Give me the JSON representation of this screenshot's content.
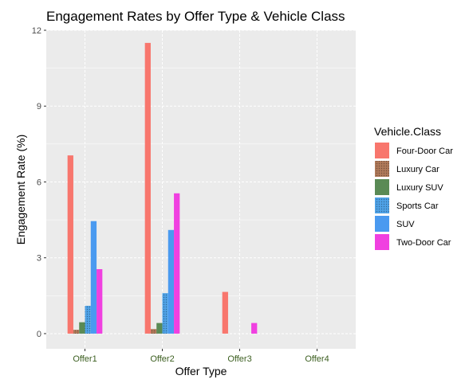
{
  "chart_data": {
    "type": "bar",
    "title": "Engagement Rates by Offer Type & Vehicle Class",
    "xlabel": "Offer Type",
    "ylabel": "Engagement Rate (%)",
    "categories": [
      "Offer1",
      "Offer2",
      "Offer3",
      "Offer4"
    ],
    "ylim": [
      -0.6,
      12
    ],
    "yticks": [
      0,
      3,
      6,
      9,
      12
    ],
    "grid": true,
    "legend": {
      "title": "Vehicle.Class",
      "placement": "right"
    },
    "series": [
      {
        "name": "Four-Door Car",
        "color": "#F8766D",
        "values": [
          7.05,
          11.5,
          1.65,
          0
        ]
      },
      {
        "name": "Luxury Car",
        "color": "#B07A5A",
        "values": [
          0.15,
          0.18,
          0,
          0
        ]
      },
      {
        "name": "Luxury SUV",
        "color": "#5A8A55",
        "values": [
          0.45,
          0.42,
          0,
          0
        ]
      },
      {
        "name": "Sports Car",
        "color": "#4FA3E8",
        "values": [
          1.1,
          1.6,
          0,
          0
        ]
      },
      {
        "name": "SUV",
        "color": "#4A9AF0",
        "values": [
          4.45,
          4.1,
          0,
          0
        ]
      },
      {
        "name": "Two-Door Car",
        "color": "#F040E0",
        "values": [
          2.55,
          5.55,
          0.42,
          0
        ]
      }
    ]
  }
}
